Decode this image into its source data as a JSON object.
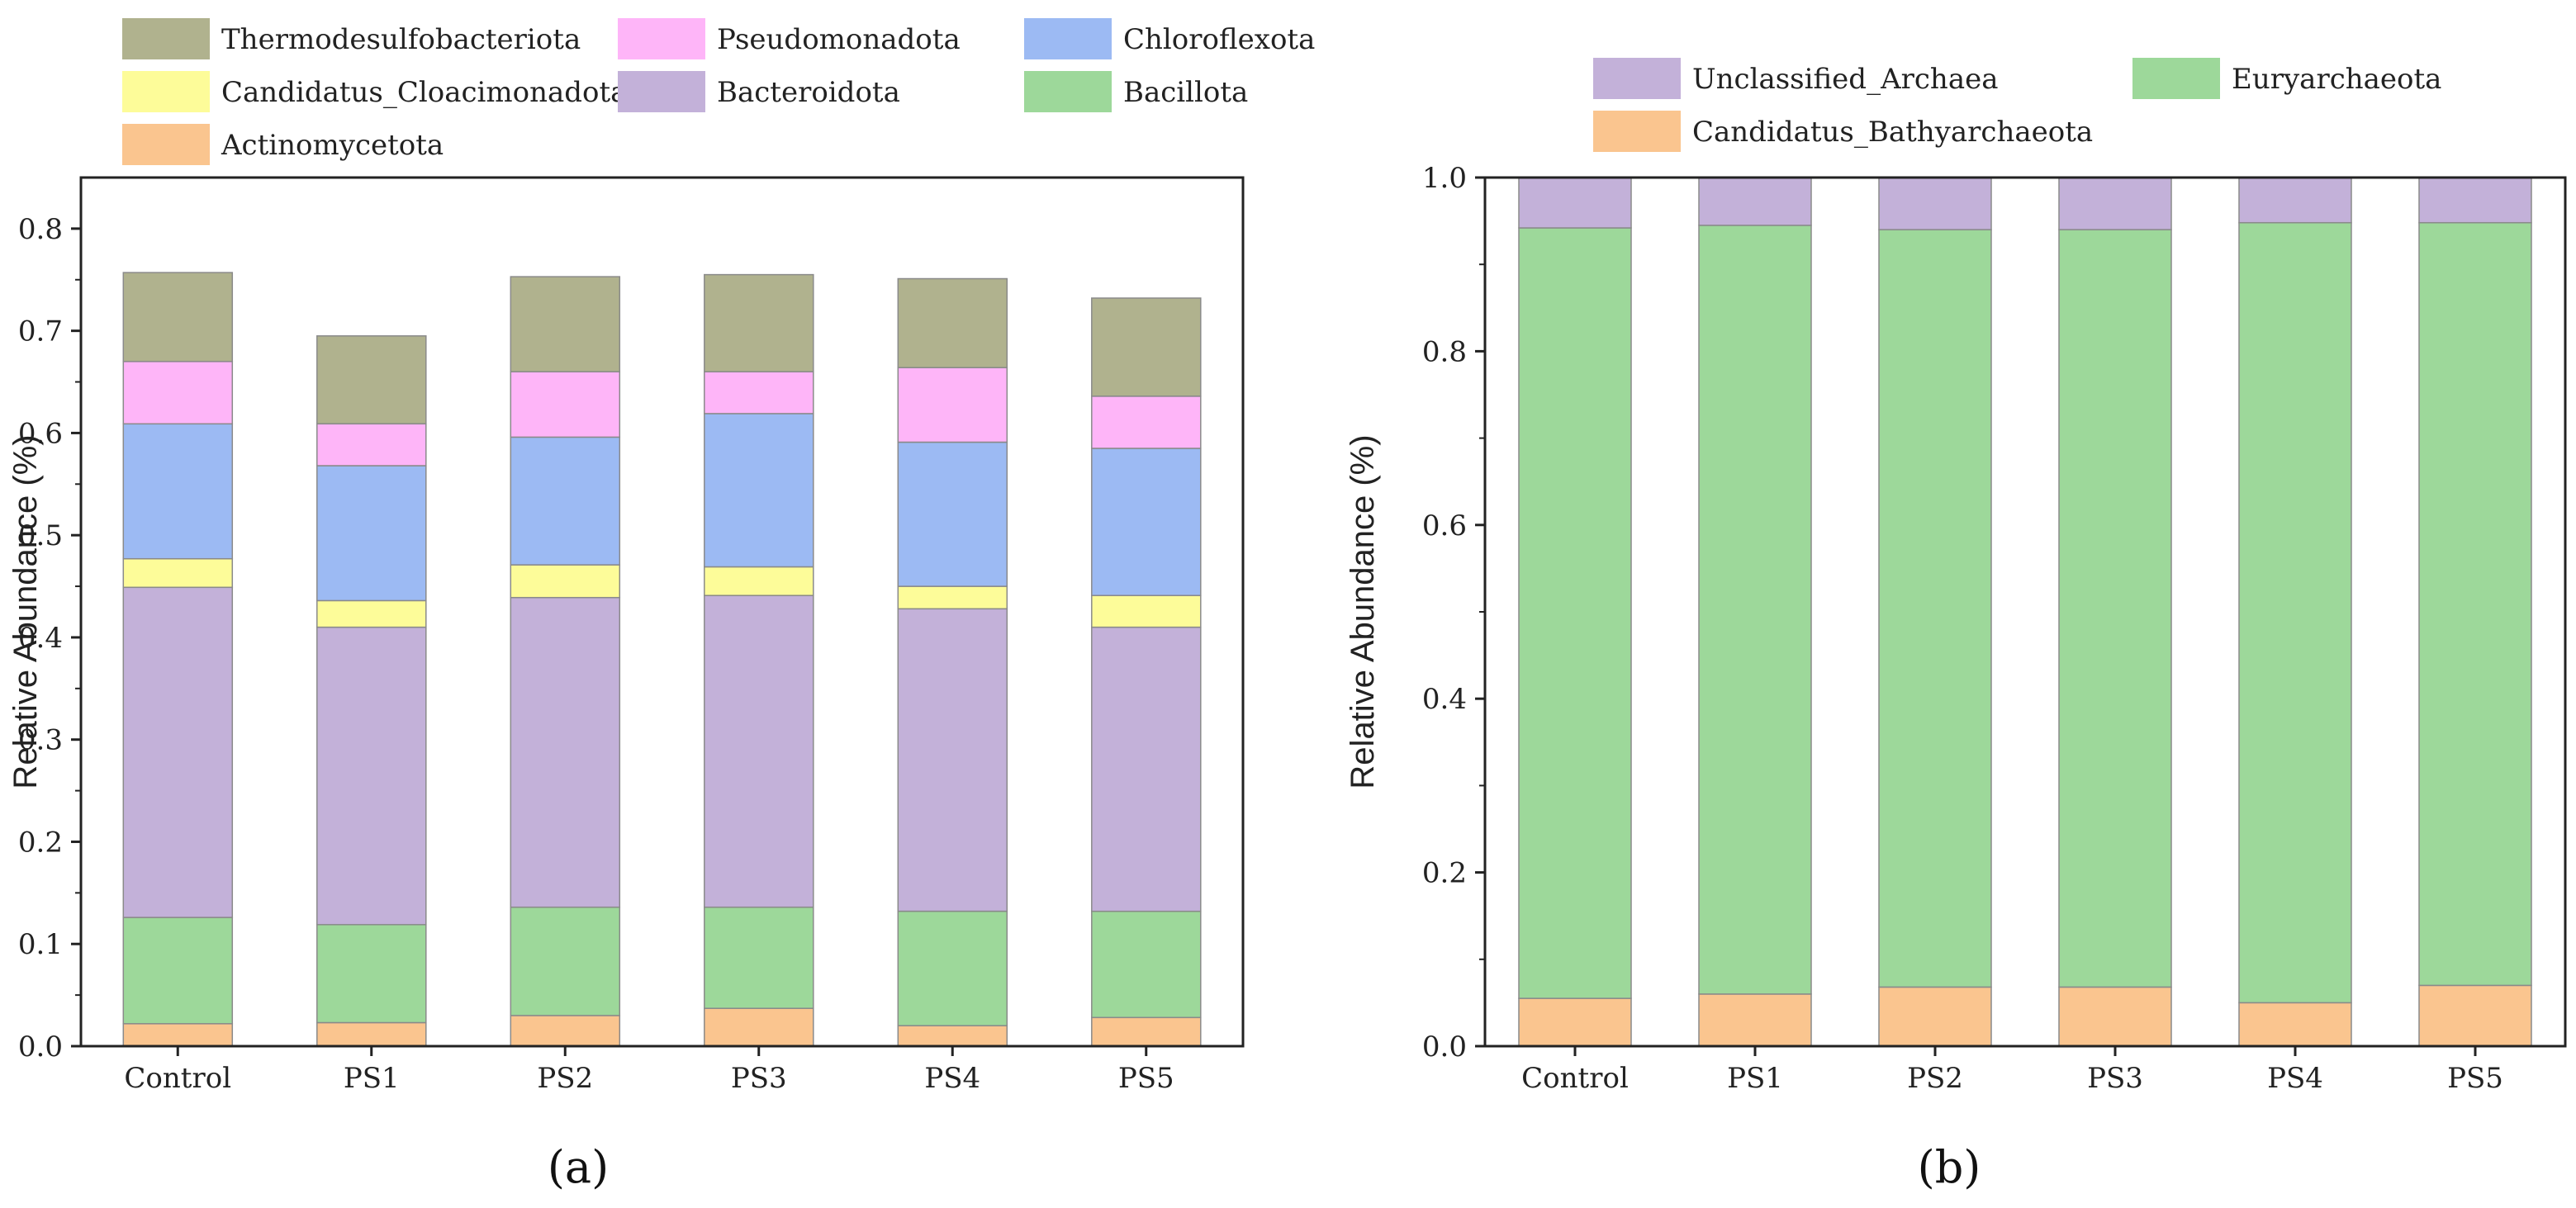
{
  "chart_data": [
    {
      "type": "bar",
      "stacked": true,
      "panel_label": "(a)",
      "xlabel": "",
      "ylabel": "Relative Abundance (%)",
      "ylim": [
        0,
        0.85
      ],
      "yticks": [
        "0.0",
        "0.1",
        "0.2",
        "0.3",
        "0.4",
        "0.5",
        "0.6",
        "0.7",
        "0.8"
      ],
      "categories": [
        "Control",
        "PS1",
        "PS2",
        "PS3",
        "PS4",
        "PS5"
      ],
      "legend_position": "top",
      "series": [
        {
          "name": "Actinomycetota",
          "color": "#FAC58F",
          "values": [
            0.022,
            0.023,
            0.03,
            0.037,
            0.02,
            0.028
          ]
        },
        {
          "name": "Bacillota",
          "color": "#9DD89A",
          "values": [
            0.104,
            0.096,
            0.106,
            0.099,
            0.112,
            0.104
          ]
        },
        {
          "name": "Bacteroidota",
          "color": "#C3B1D9",
          "values": [
            0.323,
            0.291,
            0.303,
            0.305,
            0.296,
            0.278
          ]
        },
        {
          "name": "Candidatus_Cloacimonadota",
          "color": "#FDFC99",
          "values": [
            0.028,
            0.026,
            0.032,
            0.028,
            0.022,
            0.031
          ]
        },
        {
          "name": "Chloroflexota",
          "color": "#9CBAF3",
          "values": [
            0.132,
            0.132,
            0.125,
            0.15,
            0.141,
            0.144
          ]
        },
        {
          "name": "Pseudomonadota",
          "color": "#FEB5F8",
          "values": [
            0.061,
            0.041,
            0.064,
            0.041,
            0.073,
            0.051
          ]
        },
        {
          "name": "Thermodesulfobacteriota",
          "color": "#B0B28E",
          "values": [
            0.087,
            0.086,
            0.093,
            0.095,
            0.087,
            0.096
          ]
        }
      ],
      "legend_rows": [
        [
          "Thermodesulfobacteriota",
          "Pseudomonadota",
          "Chloroflexota"
        ],
        [
          "Candidatus_Cloacimonadota",
          "Bacteroidota",
          "Bacillota"
        ],
        [
          "Actinomycetota"
        ]
      ]
    },
    {
      "type": "bar",
      "stacked": true,
      "panel_label": "(b)",
      "xlabel": "",
      "ylabel": "Relative Abundance (%)",
      "ylim": [
        0,
        1.0
      ],
      "yticks": [
        "0.0",
        "0.2",
        "0.4",
        "0.6",
        "0.8",
        "1.0"
      ],
      "categories": [
        "Control",
        "PS1",
        "PS2",
        "PS3",
        "PS4",
        "PS5"
      ],
      "legend_position": "top",
      "series": [
        {
          "name": "Candidatus_Bathyarchaeota",
          "color": "#FAC58F",
          "values": [
            0.055,
            0.06,
            0.068,
            0.068,
            0.05,
            0.07
          ]
        },
        {
          "name": "Euryarchaeota",
          "color": "#9DD89A",
          "values": [
            0.887,
            0.885,
            0.872,
            0.872,
            0.898,
            0.878
          ]
        },
        {
          "name": "Unclassified_Archaea",
          "color": "#C3B1D9",
          "values": [
            0.058,
            0.055,
            0.06,
            0.06,
            0.052,
            0.052
          ]
        }
      ],
      "legend_rows": [
        [
          "Unclassified_Archaea",
          "Euryarchaeota"
        ],
        [
          "Candidatus_Bathyarchaeota"
        ]
      ]
    }
  ]
}
